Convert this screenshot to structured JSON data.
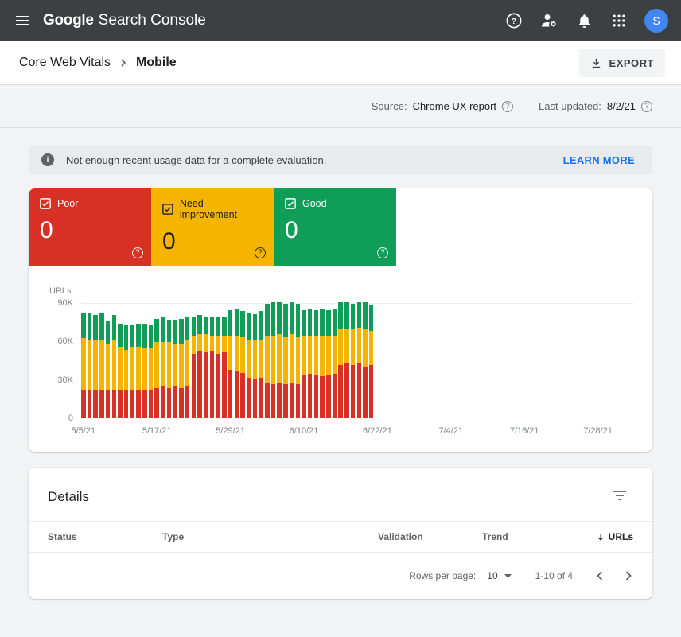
{
  "colors": {
    "app_bar_bg": "#3c4043",
    "page_bg": "#f1f3f4",
    "link": "#1a73e8",
    "avatar_bg": "#4285f4",
    "poor_red": "#d93025",
    "improve_yellow": "#f4b400",
    "good_green": "#0f9d58"
  },
  "app_bar": {
    "product_bold": "Google",
    "product_rest": "Search Console",
    "avatar_initial": "S"
  },
  "breadcrumb": {
    "parent": "Core Web Vitals",
    "current": "Mobile"
  },
  "toolbar": {
    "export_label": "EXPORT"
  },
  "meta_bar": {
    "source_label": "Source:",
    "source_value": "Chrome UX report",
    "last_updated_label": "Last updated:",
    "last_updated_value": "8/2/21",
    "q_mark": "?"
  },
  "banner": {
    "info_glyph": "i",
    "message": "Not enough recent usage data for a complete evaluation.",
    "action_label": "LEARN MORE"
  },
  "tiles": [
    {
      "label": "Poor",
      "count": "0",
      "color": "#d93025",
      "text_color": "#ffffff",
      "q_mark": "?"
    },
    {
      "label": "Need improvement",
      "count": "0",
      "color": "#f4b400",
      "text_color": "#202124",
      "q_mark": "?"
    },
    {
      "label": "Good",
      "count": "0",
      "color": "#0f9d58",
      "text_color": "#ffffff",
      "q_mark": "?"
    }
  ],
  "chart_data": {
    "type": "bar",
    "stacked": true,
    "title": "",
    "xlabel": "",
    "ylabel": "URLs",
    "units": "thousands of URLs",
    "ylim": [
      0,
      90000
    ],
    "grid": "top and baseline only",
    "legend": [
      "Poor",
      "Need improvement",
      "Good"
    ],
    "legend_position": "summary tiles above chart",
    "series_colors": {
      "poor": "#d93025",
      "ni": "#f4b400",
      "good": "#0f9d58"
    },
    "y_ticks_top_down": [
      "90K",
      "60K",
      "30K",
      "0"
    ],
    "x_ticks": [
      {
        "label": "5/5/21",
        "day": 0
      },
      {
        "label": "5/17/21",
        "day": 12
      },
      {
        "label": "5/29/21",
        "day": 24
      },
      {
        "label": "6/10/21",
        "day": 36
      },
      {
        "label": "6/22/21",
        "day": 48
      },
      {
        "label": "7/4/21",
        "day": 60
      },
      {
        "label": "7/16/21",
        "day": 72
      },
      {
        "label": "7/28/21",
        "day": 84
      }
    ],
    "bars_note": "daily stacked counts (thousands), 5/5/21 through 6/21/21; no data after 6/21/21",
    "bars": [
      {
        "poor": 22,
        "ni": 40,
        "good": 20
      },
      {
        "poor": 22,
        "ni": 39,
        "good": 21
      },
      {
        "poor": 21,
        "ni": 40,
        "good": 19
      },
      {
        "poor": 22,
        "ni": 38,
        "good": 22
      },
      {
        "poor": 21,
        "ni": 37,
        "good": 17
      },
      {
        "poor": 22,
        "ni": 38,
        "good": 20
      },
      {
        "poor": 22,
        "ni": 33,
        "good": 18
      },
      {
        "poor": 21,
        "ni": 32,
        "good": 19
      },
      {
        "poor": 22,
        "ni": 33,
        "good": 17
      },
      {
        "poor": 21,
        "ni": 34,
        "good": 18
      },
      {
        "poor": 22,
        "ni": 32,
        "good": 19
      },
      {
        "poor": 21,
        "ni": 33,
        "good": 18
      },
      {
        "poor": 23,
        "ni": 36,
        "good": 18
      },
      {
        "poor": 24,
        "ni": 35,
        "good": 19
      },
      {
        "poor": 23,
        "ni": 36,
        "good": 17
      },
      {
        "poor": 24,
        "ni": 34,
        "good": 18
      },
      {
        "poor": 23,
        "ni": 35,
        "good": 19
      },
      {
        "poor": 24,
        "ni": 36,
        "good": 18
      },
      {
        "poor": 50,
        "ni": 14,
        "good": 14
      },
      {
        "poor": 52,
        "ni": 13,
        "good": 15
      },
      {
        "poor": 51,
        "ni": 14,
        "good": 14
      },
      {
        "poor": 52,
        "ni": 12,
        "good": 15
      },
      {
        "poor": 50,
        "ni": 14,
        "good": 14
      },
      {
        "poor": 51,
        "ni": 13,
        "good": 15
      },
      {
        "poor": 37,
        "ni": 27,
        "good": 20
      },
      {
        "poor": 36,
        "ni": 28,
        "good": 21
      },
      {
        "poor": 35,
        "ni": 28,
        "good": 20
      },
      {
        "poor": 31,
        "ni": 30,
        "good": 21
      },
      {
        "poor": 30,
        "ni": 31,
        "good": 20
      },
      {
        "poor": 31,
        "ni": 30,
        "good": 22
      },
      {
        "poor": 27,
        "ni": 37,
        "good": 25
      },
      {
        "poor": 26,
        "ni": 38,
        "good": 26
      },
      {
        "poor": 27,
        "ni": 38,
        "good": 25
      },
      {
        "poor": 26,
        "ni": 37,
        "good": 26
      },
      {
        "poor": 27,
        "ni": 38,
        "good": 25
      },
      {
        "poor": 26,
        "ni": 37,
        "good": 26
      },
      {
        "poor": 33,
        "ni": 31,
        "good": 20
      },
      {
        "poor": 34,
        "ni": 30,
        "good": 21
      },
      {
        "poor": 33,
        "ni": 31,
        "good": 20
      },
      {
        "poor": 32,
        "ni": 32,
        "good": 21
      },
      {
        "poor": 33,
        "ni": 31,
        "good": 20
      },
      {
        "poor": 34,
        "ni": 30,
        "good": 21
      },
      {
        "poor": 41,
        "ni": 28,
        "good": 21
      },
      {
        "poor": 42,
        "ni": 27,
        "good": 21
      },
      {
        "poor": 41,
        "ni": 28,
        "good": 20
      },
      {
        "poor": 42,
        "ni": 28,
        "good": 20
      },
      {
        "poor": 40,
        "ni": 29,
        "good": 21
      },
      {
        "poor": 41,
        "ni": 27,
        "good": 20
      }
    ]
  },
  "details": {
    "title": "Details",
    "columns": [
      {
        "label": "Status"
      },
      {
        "label": "Type"
      },
      {
        "label": "Validation"
      },
      {
        "label": "Trend"
      },
      {
        "label": "URLs",
        "sorted": "desc"
      }
    ],
    "rows": [],
    "pagination": {
      "rows_per_page_label": "Rows per page:",
      "rows_per_page_value": "10",
      "range_text": "1-10 of 4"
    }
  }
}
